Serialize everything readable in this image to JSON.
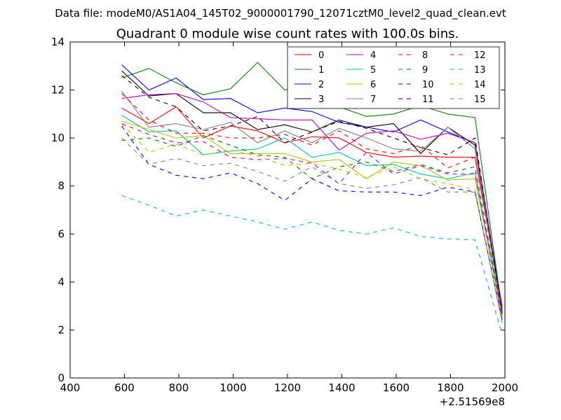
{
  "chart_data": {
    "type": "line",
    "suptitle": "Data file: modeM0/AS1A04_145T02_9000001790_12071cztM0_level2_quad_clean.evt",
    "title": "Quadrant 0 module wise count rates with 100.0s bins.",
    "xlabel": "",
    "ylabel": "",
    "x_offset_label": "+2.51569e8",
    "xlim": [
      400,
      2000
    ],
    "ylim": [
      0,
      14
    ],
    "xticks": [
      "400",
      "600",
      "800",
      "1000",
      "1200",
      "1400",
      "1600",
      "1800",
      "2000"
    ],
    "yticks": [
      "0",
      "2",
      "4",
      "6",
      "8",
      "10",
      "12",
      "14"
    ],
    "grid": false,
    "legend_position": "top-right",
    "x": [
      590,
      690,
      790,
      890,
      990,
      1090,
      1190,
      1290,
      1390,
      1490,
      1590,
      1690,
      1790,
      1890,
      1990
    ],
    "series": [
      {
        "name": "0",
        "color": "#ff0000",
        "dash": "solid",
        "values": [
          11.25,
          10.6,
          11.3,
          10.0,
          10.5,
          10.3,
          9.8,
          10.05,
          10.0,
          9.4,
          9.2,
          9.25,
          9.2,
          9.2,
          3.0
        ]
      },
      {
        "name": "1",
        "color": "#008000",
        "dash": "solid",
        "values": [
          12.5,
          12.9,
          12.3,
          11.8,
          12.05,
          13.15,
          12.0,
          12.3,
          11.3,
          10.9,
          11.0,
          11.35,
          11.0,
          10.85,
          2.8
        ]
      },
      {
        "name": "2",
        "color": "#0000ff",
        "dash": "solid",
        "values": [
          13.05,
          12.0,
          12.5,
          11.6,
          11.65,
          11.05,
          11.25,
          11.1,
          10.65,
          10.45,
          10.25,
          10.75,
          10.25,
          9.8,
          2.9
        ]
      },
      {
        "name": "3",
        "color": "#000000",
        "dash": "solid",
        "values": [
          12.8,
          11.75,
          11.85,
          11.05,
          11.05,
          10.35,
          10.55,
          10.25,
          10.75,
          10.45,
          10.6,
          9.35,
          10.45,
          9.7,
          2.7
        ]
      },
      {
        "name": "4",
        "color": "#bf00bf",
        "dash": "solid",
        "values": [
          11.65,
          11.8,
          11.85,
          11.5,
          10.85,
          10.8,
          10.75,
          10.75,
          9.5,
          10.2,
          10.3,
          9.95,
          10.2,
          9.8,
          2.7
        ]
      },
      {
        "name": "5",
        "color": "#00bfbf",
        "dash": "solid",
        "values": [
          10.95,
          10.25,
          10.3,
          9.3,
          9.45,
          9.55,
          10.0,
          9.2,
          9.4,
          8.85,
          8.9,
          8.5,
          8.3,
          8.55,
          2.6
        ]
      },
      {
        "name": "6",
        "color": "#bfbf00",
        "dash": "solid",
        "values": [
          10.7,
          10.35,
          10.0,
          10.1,
          9.35,
          9.35,
          9.35,
          9.0,
          9.1,
          8.3,
          9.0,
          8.85,
          8.25,
          8.3,
          2.5
        ]
      },
      {
        "name": "7",
        "color": "#808080",
        "dash": "solid",
        "values": [
          11.95,
          10.45,
          10.6,
          10.35,
          10.65,
          9.8,
          10.3,
          9.8,
          10.4,
          10.0,
          9.55,
          9.45,
          10.45,
          9.55,
          2.6
        ]
      },
      {
        "name": "8",
        "color": "#ff0000",
        "dash": "dashed",
        "values": [
          11.85,
          10.75,
          10.2,
          10.2,
          10.0,
          10.0,
          10.15,
          9.7,
          10.3,
          9.55,
          9.35,
          9.7,
          8.75,
          9.2,
          2.9
        ]
      },
      {
        "name": "9",
        "color": "#008000",
        "dash": "dashed",
        "values": [
          9.9,
          10.0,
          9.65,
          10.1,
          9.7,
          9.3,
          9.2,
          8.3,
          8.8,
          9.0,
          8.6,
          8.9,
          8.55,
          8.8,
          2.6
        ]
      },
      {
        "name": "10",
        "color": "#0000ff",
        "dash": "dashed",
        "values": [
          10.5,
          8.9,
          8.45,
          8.3,
          8.55,
          8.1,
          7.4,
          8.3,
          7.8,
          7.75,
          7.75,
          7.6,
          7.95,
          7.75,
          2.4
        ]
      },
      {
        "name": "11",
        "color": "#000000",
        "dash": "dashed",
        "values": [
          12.6,
          11.7,
          11.3,
          10.3,
          10.5,
          10.9,
          9.8,
          10.25,
          10.7,
          10.4,
          10.0,
          9.6,
          9.3,
          10.0,
          2.7
        ]
      },
      {
        "name": "12",
        "color": "#bf00bf",
        "dash": "dashed",
        "values": [
          10.6,
          10.15,
          9.8,
          9.85,
          9.2,
          9.1,
          9.15,
          8.95,
          8.1,
          9.4,
          8.5,
          8.85,
          8.5,
          8.5,
          2.6
        ]
      },
      {
        "name": "13",
        "color": "#00bfbf",
        "dash": "dashed",
        "values": [
          7.6,
          7.2,
          6.75,
          7.0,
          6.75,
          6.5,
          6.2,
          6.5,
          6.15,
          6.0,
          6.25,
          5.9,
          5.8,
          5.75,
          1.8
        ]
      },
      {
        "name": "14",
        "color": "#bfbf00",
        "dash": "dashed",
        "values": [
          10.6,
          9.4,
          9.75,
          9.3,
          9.5,
          9.25,
          8.85,
          8.95,
          8.7,
          8.35,
          8.8,
          8.3,
          8.1,
          7.85,
          2.3
        ]
      },
      {
        "name": "15",
        "color": "#808080",
        "dash": "dashed",
        "values": [
          10.0,
          8.9,
          9.15,
          8.85,
          8.95,
          8.6,
          8.2,
          8.8,
          8.1,
          7.9,
          8.05,
          8.35,
          7.75,
          7.75,
          2.3
        ]
      }
    ]
  }
}
